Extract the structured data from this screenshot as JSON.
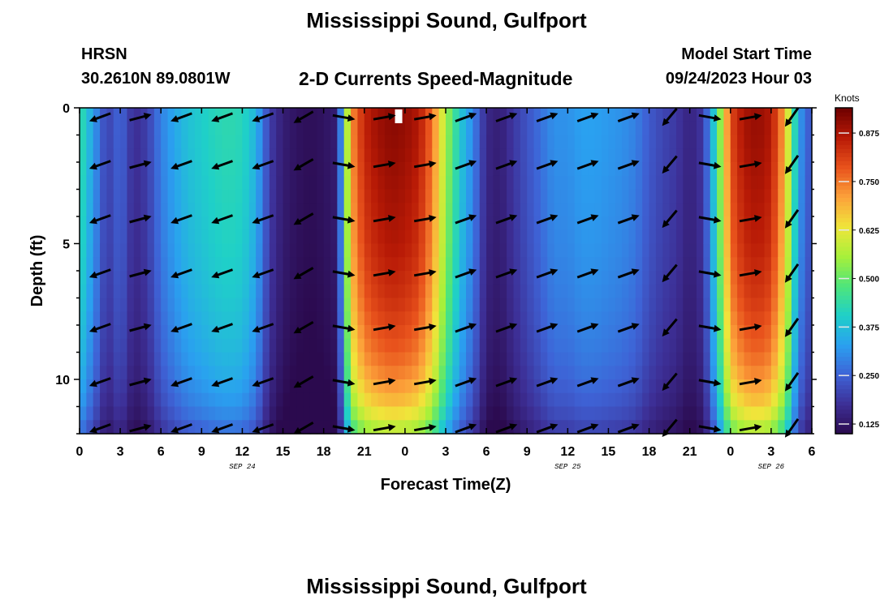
{
  "page": {
    "title": "Mississippi Sound, Gulfport",
    "station_code": "HRSN",
    "station_coords": "30.2610N  89.0801W",
    "chart_title": "2-D Currents Speed-Magnitude",
    "model_start_label": "Model Start Time",
    "model_start_value": "09/24/2023 Hour 03",
    "bottom_title": "Mississippi Sound, Gulfport"
  },
  "colors": {
    "colormap": [
      "#2b0a4e",
      "#3d2f96",
      "#3e63d6",
      "#2aa0f0",
      "#1fd0c8",
      "#4fe57a",
      "#a8f03a",
      "#f0e53a",
      "#fca13a",
      "#e8521c",
      "#b81a06",
      "#6e0000"
    ],
    "arrow": "#000000",
    "axis": "#000000"
  },
  "chart_data": {
    "type": "heatmap",
    "title": "2-D Currents Speed-Magnitude",
    "xlabel": "Forecast Time(Z)",
    "ylabel": "Depth (ft)",
    "x_tick_labels": [
      "0",
      "3",
      "6",
      "9",
      "12",
      "15",
      "18",
      "21",
      "0",
      "3",
      "6",
      "9",
      "12",
      "15",
      "18",
      "21",
      "0",
      "3",
      "6"
    ],
    "x_range_hours": [
      0,
      54
    ],
    "y_tick_labels": [
      "0",
      "5",
      "10"
    ],
    "y_tick_values": [
      0,
      5,
      10
    ],
    "y_range_ft": [
      0,
      12
    ],
    "date_labels": [
      {
        "text": "SEP 24",
        "hour": 12
      },
      {
        "text": "SEP 25",
        "hour": 36
      },
      {
        "text": "SEP 26",
        "hour": 51
      }
    ],
    "colorbar": {
      "label": "Knots",
      "tick_labels": [
        "0.875",
        "0.750",
        "0.625",
        "0.500",
        "0.375",
        "0.250",
        "0.125"
      ],
      "tick_values": [
        0.875,
        0.75,
        0.625,
        0.5,
        0.375,
        0.25,
        0.125
      ],
      "range": [
        0.1,
        0.94
      ]
    },
    "speed_knots_by_hour": [
      0.45,
      0.33,
      0.2,
      0.26,
      0.17,
      0.2,
      0.29,
      0.34,
      0.38,
      0.4,
      0.42,
      0.43,
      0.42,
      0.36,
      0.2,
      0.14,
      0.12,
      0.11,
      0.12,
      0.14,
      0.72,
      0.85,
      0.89,
      0.91,
      0.9,
      0.87,
      0.76,
      0.56,
      0.4,
      0.3,
      0.16,
      0.14,
      0.19,
      0.23,
      0.27,
      0.31,
      0.31,
      0.33,
      0.33,
      0.32,
      0.31,
      0.29,
      0.24,
      0.21,
      0.19,
      0.15,
      0.19,
      0.45,
      0.8,
      0.88,
      0.9,
      0.87,
      0.7,
      0.33,
      0.22
    ],
    "depth_factor_by_ft": [
      1.0,
      1.0,
      0.99,
      0.98,
      0.97,
      0.96,
      0.94,
      0.92,
      0.89,
      0.86,
      0.81,
      0.74,
      0.62
    ],
    "gap_cell": {
      "hour": 23.5,
      "depth_ft": 0.3
    },
    "vector_columns_hours": [
      1.5,
      4.5,
      7.5,
      10.5,
      13.5,
      16.5,
      19.5,
      22.5,
      25.5,
      28.5,
      31.5,
      34.5,
      37.5,
      40.5,
      43.5,
      46.5,
      49.5,
      52.5
    ],
    "vector_rows_ft": [
      0.35,
      2.1,
      4.1,
      6.1,
      8.1,
      10.1,
      11.8
    ],
    "vector_direction_deg_by_column": [
      200,
      15,
      200,
      200,
      200,
      210,
      350,
      10,
      10,
      20,
      20,
      20,
      20,
      20,
      230,
      350,
      10,
      235
    ]
  }
}
